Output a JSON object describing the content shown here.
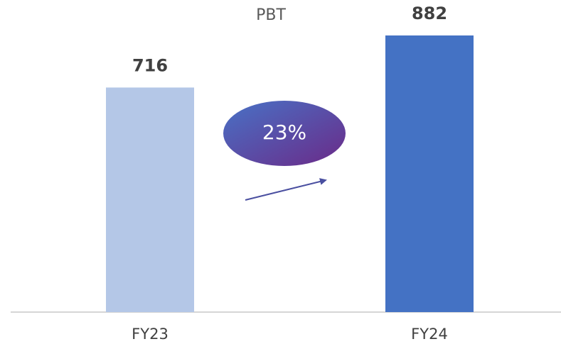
{
  "chart_data": {
    "type": "bar",
    "title": "PBT",
    "categories": [
      "FY23",
      "FY24"
    ],
    "values": [
      716,
      882
    ],
    "colors": [
      "#b4c7e7",
      "#4472c4"
    ],
    "annotation": "23%"
  }
}
